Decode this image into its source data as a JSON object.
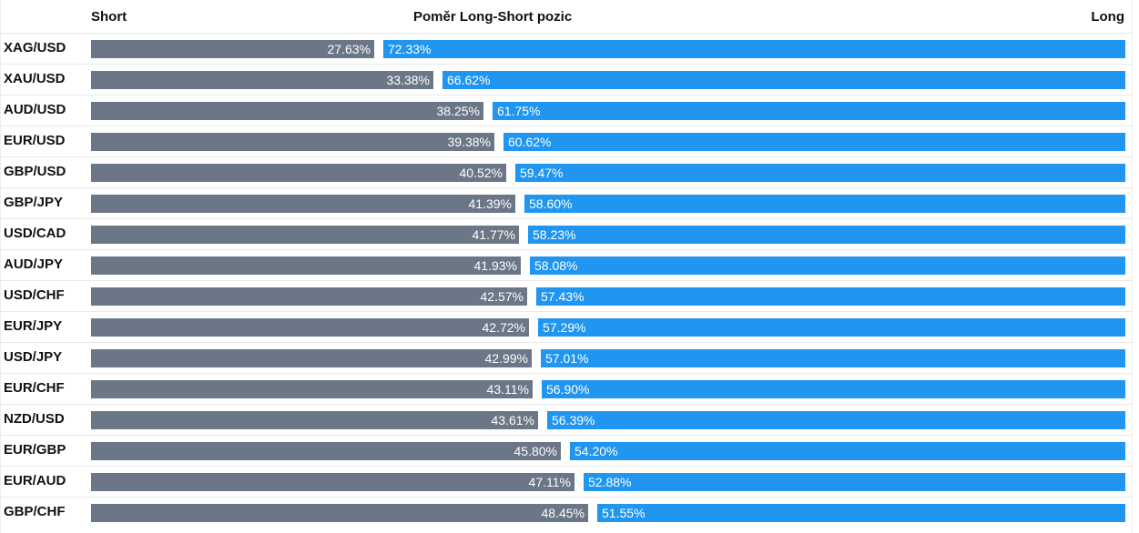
{
  "header": {
    "short_label": "Short",
    "title": "Poměr Long-Short pozic",
    "long_label": "Long"
  },
  "colors": {
    "short": "#6b7786",
    "long": "#2196f0",
    "text": "#111111"
  },
  "chart_data": {
    "type": "bar",
    "stacked": true,
    "orientation": "horizontal",
    "title": "Poměr Long-Short pozic",
    "categories": [
      "XAG/USD",
      "XAU/USD",
      "AUD/USD",
      "EUR/USD",
      "GBP/USD",
      "GBP/JPY",
      "USD/CAD",
      "AUD/JPY",
      "USD/CHF",
      "EUR/JPY",
      "USD/JPY",
      "EUR/CHF",
      "NZD/USD",
      "EUR/GBP",
      "EUR/AUD",
      "GBP/CHF"
    ],
    "series": [
      {
        "name": "Short",
        "values": [
          27.63,
          33.38,
          38.25,
          39.38,
          40.52,
          41.39,
          41.77,
          41.93,
          42.57,
          42.72,
          42.99,
          43.11,
          43.61,
          45.8,
          47.11,
          48.45
        ]
      },
      {
        "name": "Long",
        "values": [
          72.33,
          66.62,
          61.75,
          60.62,
          59.47,
          58.6,
          58.23,
          58.08,
          57.43,
          57.29,
          57.01,
          56.9,
          56.39,
          54.2,
          52.88,
          51.55
        ]
      }
    ],
    "short_labels": [
      "27.63%",
      "33.38%",
      "38.25%",
      "39.38%",
      "40.52%",
      "41.39%",
      "41.77%",
      "41.93%",
      "42.57%",
      "42.72%",
      "42.99%",
      "43.11%",
      "43.61%",
      "45.80%",
      "47.11%",
      "48.45%"
    ],
    "long_labels": [
      "72.33%",
      "66.62%",
      "61.75%",
      "60.62%",
      "59.47%",
      "58.60%",
      "58.23%",
      "58.08%",
      "57.43%",
      "57.29%",
      "57.01%",
      "56.90%",
      "56.39%",
      "54.20%",
      "52.88%",
      "51.55%"
    ],
    "legend": "top",
    "grid": false
  }
}
